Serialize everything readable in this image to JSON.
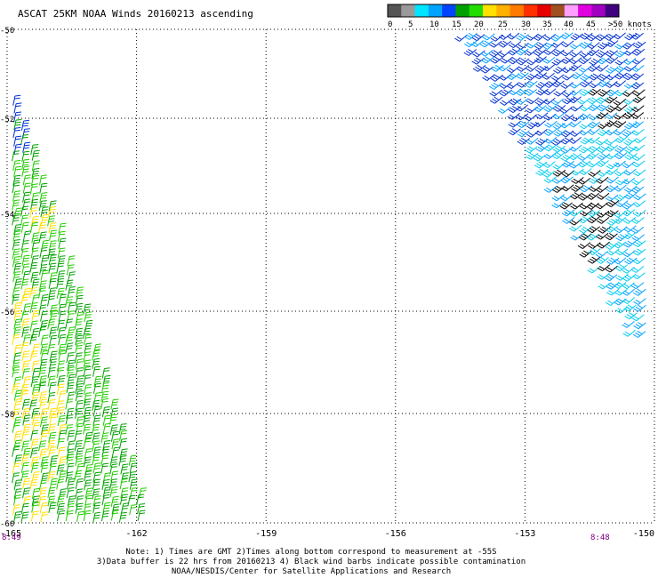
{
  "title": "ASCAT 25KM NOAA Winds 20160213 ascending",
  "colorbar": {
    "labels": [
      "0",
      "5",
      "10",
      "15",
      "20",
      "25",
      "30",
      "35",
      "40",
      "45",
      ">50 knots"
    ],
    "colors": [
      "#555555",
      "#9a9a9a",
      "#00e5ff",
      "#00a4ff",
      "#0044ff",
      "#00a000",
      "#22dd00",
      "#ffe000",
      "#ffb000",
      "#ff7a00",
      "#ff3000",
      "#e60000",
      "#a05020",
      "#ffa0ff",
      "#e000e0",
      "#a000c0",
      "#400080"
    ]
  },
  "map": {
    "lat_labels": [
      "-50",
      "-52",
      "-54",
      "-56",
      "-58",
      "-60"
    ],
    "lon_labels": [
      "-165",
      "-162",
      "-159",
      "-156",
      "-153",
      "-150"
    ],
    "lat_range": [
      -60,
      -50
    ],
    "lon_range": [
      -165,
      -150
    ],
    "grid": true
  },
  "swaths": [
    {
      "name": "left-swath",
      "time_label": "8:49"
    },
    {
      "name": "right-swath",
      "time_label": "8:48"
    }
  ],
  "notes": [
    "Note: 1) Times are GMT 2)Times along bottom correspond to measurement at -55S",
    "3)Data buffer is 22 hrs from 20160213 4) Black wind barbs indicate possible contamination",
    "NOAA/NESDIS/Center for Satellite Applications and Research"
  ]
}
